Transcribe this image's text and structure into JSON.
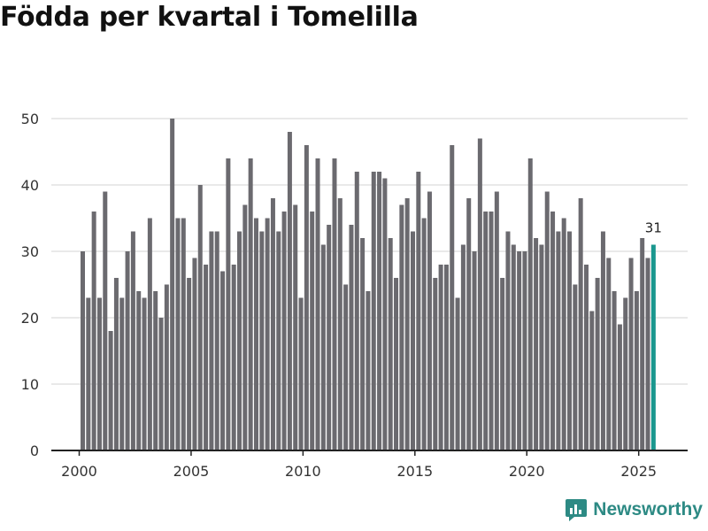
{
  "header": {
    "title": "Födda per kvartal i Tomelilla"
  },
  "brand": {
    "name": "Newsworthy"
  },
  "colors": {
    "bar": "#6b6a6f",
    "highlight": "#1a978e",
    "grid": "#dcdcdc",
    "axis": "#222222",
    "brand": "#2d8a84"
  },
  "chart_data": {
    "type": "bar",
    "title": "Födda per kvartal i Tomelilla",
    "xlabel": "",
    "ylabel": "",
    "ylim": [
      0,
      50
    ],
    "yticks": [
      0,
      10,
      20,
      30,
      40,
      50
    ],
    "xticks": [
      2000,
      2005,
      2010,
      2015,
      2020,
      2025
    ],
    "grid": true,
    "start": {
      "year": 2000,
      "quarter": 1
    },
    "highlight_last": true,
    "last_value_label": "31",
    "values": [
      30,
      23,
      36,
      23,
      39,
      18,
      26,
      23,
      30,
      33,
      24,
      23,
      35,
      24,
      20,
      25,
      50,
      35,
      35,
      26,
      29,
      40,
      28,
      33,
      33,
      27,
      44,
      28,
      33,
      37,
      44,
      35,
      33,
      35,
      38,
      33,
      36,
      48,
      37,
      23,
      46,
      36,
      44,
      31,
      34,
      44,
      38,
      25,
      34,
      42,
      32,
      24,
      42,
      42,
      41,
      32,
      26,
      37,
      38,
      33,
      42,
      35,
      39,
      26,
      28,
      28,
      46,
      23,
      31,
      38,
      30,
      47,
      36,
      36,
      39,
      26,
      33,
      31,
      30,
      30,
      44,
      32,
      31,
      39,
      36,
      33,
      35,
      33,
      25,
      38,
      28,
      21,
      26,
      33,
      29,
      24,
      19,
      23,
      29,
      24,
      32,
      29,
      31
    ]
  }
}
